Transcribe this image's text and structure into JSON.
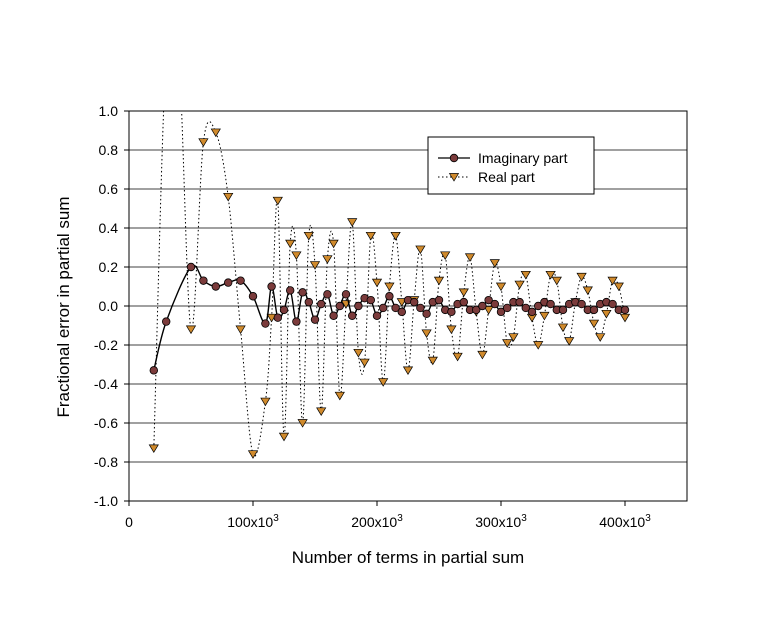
{
  "chart_data": {
    "type": "line",
    "title": "",
    "xlabel": "Number of terms in partial sum",
    "ylabel": "Fractional error in partial sum",
    "xlim": [
      0,
      450000
    ],
    "ylim": [
      -1.0,
      1.0
    ],
    "grid": "horizontal",
    "legend_position": "top-right",
    "x_ticks": [
      {
        "value": 0,
        "label": "0",
        "exp": ""
      },
      {
        "value": 100000,
        "label": "100x10",
        "exp": "3"
      },
      {
        "value": 200000,
        "label": "200x10",
        "exp": "3"
      },
      {
        "value": 300000,
        "label": "300x10",
        "exp": "3"
      },
      {
        "value": 400000,
        "label": "400x10",
        "exp": "3"
      }
    ],
    "y_ticks": [
      {
        "value": 1.0,
        "label": "1.0"
      },
      {
        "value": 0.8,
        "label": "0.8"
      },
      {
        "value": 0.6,
        "label": "0.6"
      },
      {
        "value": 0.4,
        "label": "0.4"
      },
      {
        "value": 0.2,
        "label": "0.2"
      },
      {
        "value": 0.0,
        "label": "0.0"
      },
      {
        "value": -0.2,
        "label": "-0.2"
      },
      {
        "value": -0.4,
        "label": "-0.4"
      },
      {
        "value": -0.6,
        "label": "-0.6"
      },
      {
        "value": -0.8,
        "label": "-0.8"
      },
      {
        "value": -1.0,
        "label": "-1.0"
      }
    ],
    "series": [
      {
        "name": "Imaginary part",
        "line_style": "solid",
        "marker": "circle",
        "color": "#000000",
        "marker_color": "#7b3b3b",
        "points": [
          [
            20000,
            -0.33
          ],
          [
            30000,
            -0.08
          ],
          [
            50000,
            0.2
          ],
          [
            60000,
            0.13
          ],
          [
            70000,
            0.1
          ],
          [
            80000,
            0.12
          ],
          [
            90000,
            0.13
          ],
          [
            100000,
            0.05
          ],
          [
            110000,
            -0.09
          ],
          [
            115000,
            0.1
          ],
          [
            120000,
            -0.06
          ],
          [
            125000,
            -0.02
          ],
          [
            130000,
            0.08
          ],
          [
            135000,
            -0.08
          ],
          [
            140000,
            0.07
          ],
          [
            145000,
            0.02
          ],
          [
            150000,
            -0.07
          ],
          [
            155000,
            0.01
          ],
          [
            160000,
            0.06
          ],
          [
            165000,
            -0.05
          ],
          [
            170000,
            0.0
          ],
          [
            175000,
            0.06
          ],
          [
            180000,
            -0.05
          ],
          [
            185000,
            0.0
          ],
          [
            190000,
            0.04
          ],
          [
            195000,
            0.03
          ],
          [
            200000,
            -0.05
          ],
          [
            205000,
            -0.01
          ],
          [
            210000,
            0.05
          ],
          [
            215000,
            -0.01
          ],
          [
            220000,
            -0.03
          ],
          [
            225000,
            0.03
          ],
          [
            230000,
            0.02
          ],
          [
            235000,
            -0.01
          ],
          [
            240000,
            -0.04
          ],
          [
            245000,
            0.02
          ],
          [
            250000,
            0.03
          ],
          [
            255000,
            -0.02
          ],
          [
            260000,
            -0.03
          ],
          [
            265000,
            0.01
          ],
          [
            270000,
            0.02
          ],
          [
            275000,
            -0.02
          ],
          [
            280000,
            -0.02
          ],
          [
            285000,
            0.0
          ],
          [
            290000,
            0.03
          ],
          [
            295000,
            0.01
          ],
          [
            300000,
            -0.03
          ],
          [
            305000,
            -0.01
          ],
          [
            310000,
            0.02
          ],
          [
            315000,
            0.02
          ],
          [
            320000,
            -0.01
          ],
          [
            325000,
            -0.03
          ],
          [
            330000,
            0.0
          ],
          [
            335000,
            0.02
          ],
          [
            340000,
            0.01
          ],
          [
            345000,
            -0.02
          ],
          [
            350000,
            -0.02
          ],
          [
            355000,
            0.01
          ],
          [
            360000,
            0.02
          ],
          [
            365000,
            0.01
          ],
          [
            370000,
            -0.02
          ],
          [
            375000,
            -0.02
          ],
          [
            380000,
            0.01
          ],
          [
            385000,
            0.02
          ],
          [
            390000,
            0.01
          ],
          [
            395000,
            -0.02
          ],
          [
            400000,
            -0.02
          ]
        ]
      },
      {
        "name": "Real part",
        "line_style": "dotted",
        "marker": "triangle-down",
        "color": "#000000",
        "marker_color": "#d08a2c",
        "points": [
          [
            20000,
            -0.73
          ],
          [
            30000,
            1.3
          ],
          [
            40000,
            1.3
          ],
          [
            50000,
            -0.12
          ],
          [
            60000,
            0.84
          ],
          [
            70000,
            0.89
          ],
          [
            80000,
            0.56
          ],
          [
            90000,
            -0.12
          ],
          [
            100000,
            -0.76
          ],
          [
            110000,
            -0.49
          ],
          [
            115000,
            -0.06
          ],
          [
            120000,
            0.54
          ],
          [
            125000,
            -0.67
          ],
          [
            130000,
            0.32
          ],
          [
            135000,
            0.26
          ],
          [
            140000,
            -0.6
          ],
          [
            145000,
            0.36
          ],
          [
            150000,
            0.21
          ],
          [
            155000,
            -0.54
          ],
          [
            160000,
            0.24
          ],
          [
            165000,
            0.32
          ],
          [
            170000,
            -0.46
          ],
          [
            175000,
            0.01
          ],
          [
            180000,
            0.43
          ],
          [
            185000,
            -0.24
          ],
          [
            190000,
            -0.29
          ],
          [
            195000,
            0.36
          ],
          [
            200000,
            0.12
          ],
          [
            205000,
            -0.39
          ],
          [
            210000,
            0.1
          ],
          [
            215000,
            0.36
          ],
          [
            220000,
            0.02
          ],
          [
            225000,
            -0.33
          ],
          [
            230000,
            0.03
          ],
          [
            235000,
            0.29
          ],
          [
            240000,
            -0.14
          ],
          [
            245000,
            -0.28
          ],
          [
            250000,
            0.13
          ],
          [
            255000,
            0.26
          ],
          [
            260000,
            -0.12
          ],
          [
            265000,
            -0.26
          ],
          [
            270000,
            0.07
          ],
          [
            275000,
            0.25
          ],
          [
            280000,
            -0.03
          ],
          [
            285000,
            -0.25
          ],
          [
            290000,
            -0.02
          ],
          [
            295000,
            0.22
          ],
          [
            300000,
            0.1
          ],
          [
            305000,
            -0.19
          ],
          [
            310000,
            -0.16
          ],
          [
            315000,
            0.11
          ],
          [
            320000,
            0.16
          ],
          [
            325000,
            -0.06
          ],
          [
            330000,
            -0.2
          ],
          [
            335000,
            -0.05
          ],
          [
            340000,
            0.16
          ],
          [
            345000,
            0.13
          ],
          [
            350000,
            -0.11
          ],
          [
            355000,
            -0.18
          ],
          [
            360000,
            0.02
          ],
          [
            365000,
            0.15
          ],
          [
            370000,
            0.08
          ],
          [
            375000,
            -0.09
          ],
          [
            380000,
            -0.16
          ],
          [
            385000,
            -0.04
          ],
          [
            390000,
            0.13
          ],
          [
            395000,
            0.1
          ],
          [
            400000,
            -0.06
          ]
        ]
      }
    ]
  }
}
